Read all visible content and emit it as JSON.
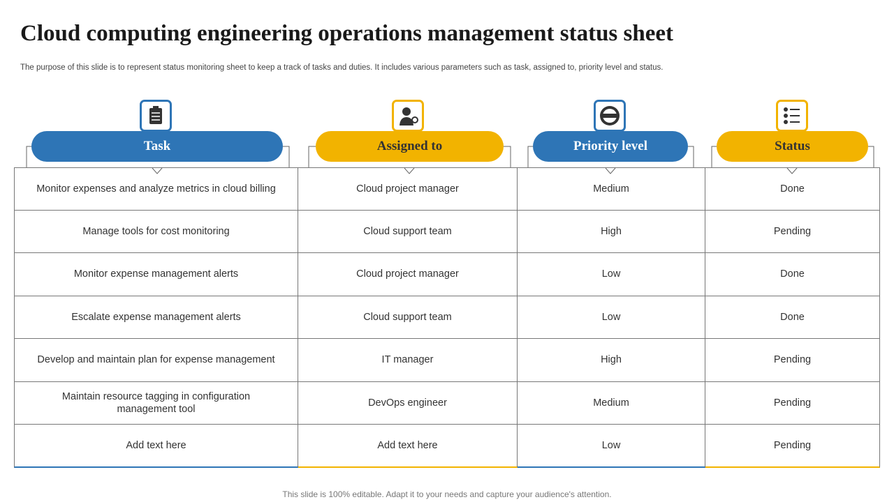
{
  "title": "Cloud computing engineering operations management status sheet",
  "subtitle": "The purpose of this slide is to represent status monitoring sheet to keep a track of tasks and duties. It includes various parameters such as task, assigned to, priority level and status.",
  "table": {
    "headers": [
      "Task",
      "Assigned to",
      "Priority level",
      "Status"
    ],
    "rows": [
      [
        "Monitor expenses and analyze metrics in cloud billing",
        "Cloud project manager",
        "Medium",
        "Done"
      ],
      [
        "Manage tools for cost monitoring",
        "Cloud support team",
        "High",
        "Pending"
      ],
      [
        "Monitor expense management alerts",
        "Cloud project manager",
        "Low",
        "Done"
      ],
      [
        "Escalate expense management alerts",
        "Cloud support team",
        "Low",
        "Done"
      ],
      [
        "Develop and maintain plan for expense management",
        "IT manager",
        "High",
        "Pending"
      ],
      [
        "Maintain resource tagging in configuration management tool",
        "DevOps engineer",
        "Medium",
        "Pending"
      ],
      [
        "Add text here",
        "Add text here",
        "Low",
        "Pending"
      ]
    ]
  },
  "footer": "This slide is 100% editable. Adapt it to your needs and capture your audience's attention."
}
